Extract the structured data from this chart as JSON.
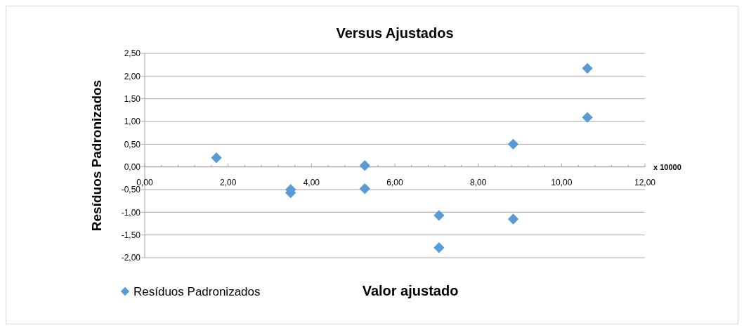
{
  "chart_data": {
    "type": "scatter",
    "title": "Versus Ajustados",
    "xlabel": "Valor ajustado",
    "ylabel": "Resíduos Padronizados",
    "annotations": [
      "x 10000"
    ],
    "x": [
      1.72,
      3.5,
      3.5,
      5.28,
      5.28,
      7.06,
      7.06,
      8.84,
      8.84,
      10.62,
      10.62
    ],
    "series": [
      {
        "name": "Resíduos Padronizados",
        "color": "#5b9bd5",
        "values": [
          0.2,
          -0.5,
          -0.57,
          0.03,
          -0.48,
          -1.07,
          -1.78,
          0.5,
          -1.15,
          2.17,
          1.09
        ]
      }
    ],
    "xlim": [
      0,
      12
    ],
    "ylim": [
      -2,
      2.5
    ],
    "xticks": [
      {
        "value": 0,
        "label": "0,00"
      },
      {
        "value": 0.4,
        "label": null
      },
      {
        "value": 0.8,
        "label": null
      },
      {
        "value": 1.2,
        "label": null
      },
      {
        "value": 1.6,
        "label": null
      },
      {
        "value": 2,
        "label": "2,00"
      },
      {
        "value": 2.4,
        "label": null
      },
      {
        "value": 2.8,
        "label": null
      },
      {
        "value": 3.2,
        "label": null
      },
      {
        "value": 3.6,
        "label": null
      },
      {
        "value": 4,
        "label": "4,00"
      },
      {
        "value": 4.4,
        "label": null
      },
      {
        "value": 4.8,
        "label": null
      },
      {
        "value": 5.2,
        "label": null
      },
      {
        "value": 5.6,
        "label": null
      },
      {
        "value": 6,
        "label": "6,00"
      },
      {
        "value": 6.4,
        "label": null
      },
      {
        "value": 6.8,
        "label": null
      },
      {
        "value": 7.2,
        "label": null
      },
      {
        "value": 7.6,
        "label": null
      },
      {
        "value": 8,
        "label": "8,00"
      },
      {
        "value": 8.4,
        "label": null
      },
      {
        "value": 8.8,
        "label": null
      },
      {
        "value": 9.2,
        "label": null
      },
      {
        "value": 9.6,
        "label": null
      },
      {
        "value": 10,
        "label": "10,00"
      },
      {
        "value": 10.4,
        "label": null
      },
      {
        "value": 10.8,
        "label": null
      },
      {
        "value": 11.2,
        "label": null
      },
      {
        "value": 11.6,
        "label": null
      },
      {
        "value": 12,
        "label": "12,00"
      }
    ],
    "yticks": [
      {
        "value": -2,
        "label": "-2,00"
      },
      {
        "value": -1.5,
        "label": "-1,50"
      },
      {
        "value": -1,
        "label": "-1,00"
      },
      {
        "value": -0.5,
        "label": "-0,50"
      },
      {
        "value": 0,
        "label": "0,00"
      },
      {
        "value": 0.5,
        "label": "0,50"
      },
      {
        "value": 1,
        "label": "1,00"
      },
      {
        "value": 1.5,
        "label": "1,50"
      },
      {
        "value": 2,
        "label": "2,00"
      },
      {
        "value": 2.5,
        "label": "2,50"
      }
    ],
    "grid": "y",
    "legend": "bottom",
    "marker": "diamond"
  }
}
